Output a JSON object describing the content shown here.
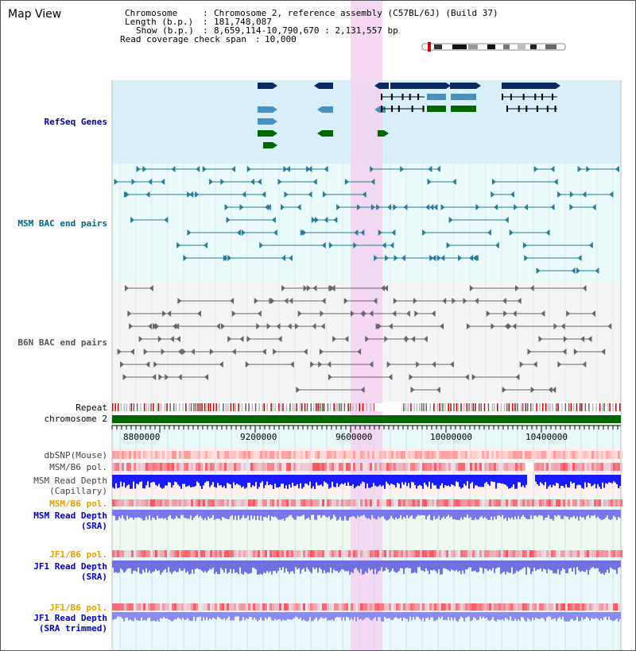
{
  "app": {
    "title": "Map View"
  },
  "info": {
    "chromosome_key": "Chromosome",
    "chromosome_val": "Chromosome 2, reference assembly (C57BL/6J) (Build 37)",
    "length_key": "Length (b.p.)",
    "length_val": "181,748,087",
    "show_key": "Show (b.p.)",
    "show_val": "8,659,114-10,790,670 : 2,131,557 bp",
    "span_key": "Read coverage check span",
    "span_val": "10,000"
  },
  "axis": {
    "label": "chromosome 2",
    "ticks": [
      "8800000",
      "9200000",
      "9600000",
      "10000000",
      "10400000"
    ]
  },
  "tracks": {
    "refseq": {
      "label": "RefSeq Genes",
      "color": "#000099"
    },
    "msm_bac": {
      "label": "MSM BAC end pairs",
      "color": "#006680"
    },
    "b6n_bac": {
      "label": "B6N BAC end pairs",
      "color": "#555555"
    },
    "repeat": {
      "label": "Repeat",
      "color": "#000000"
    },
    "dbsnp": {
      "label": "dbSNP(Mouse)",
      "color": "#444444"
    },
    "msm_b6_pol_1": {
      "label": "MSM/B6 pol.",
      "color": "#444444"
    },
    "msm_depth_cap": {
      "label1": "MSM Read Depth",
      "label2": "(Capillary)",
      "color": "#444444"
    },
    "msm_b6_pol_2": {
      "label": "MSM/B6 pol.",
      "color": "#e8a000"
    },
    "msm_depth_sra": {
      "label1": "MSM Read Depth",
      "label2": "(SRA)",
      "color": "#0000cc"
    },
    "jf1_b6_pol_1": {
      "label": "JF1/B6 pol.",
      "color": "#e8a000"
    },
    "jf1_depth_sra": {
      "label1": "JF1 Read Depth",
      "label2": "(SRA)",
      "color": "#0000cc"
    },
    "jf1_b6_pol_2": {
      "label": "JF1/B6 pol.",
      "color": "#e8a000"
    },
    "jf1_depth_trim": {
      "label1": "JF1 Read Depth",
      "label2": "(SRA trimmed)",
      "color": "#0000cc"
    }
  },
  "colors": {
    "highlight": "#f5d4f2",
    "refseq_bg": "#d8f0fa",
    "bac_bg": "#e8fafa",
    "b6n_bg": "#f4f4f4",
    "gene_dark": "#0a2a5e",
    "gene_mid": "#4a90b8",
    "gene_green": "#006600",
    "chrom_bar": "#006600"
  }
}
